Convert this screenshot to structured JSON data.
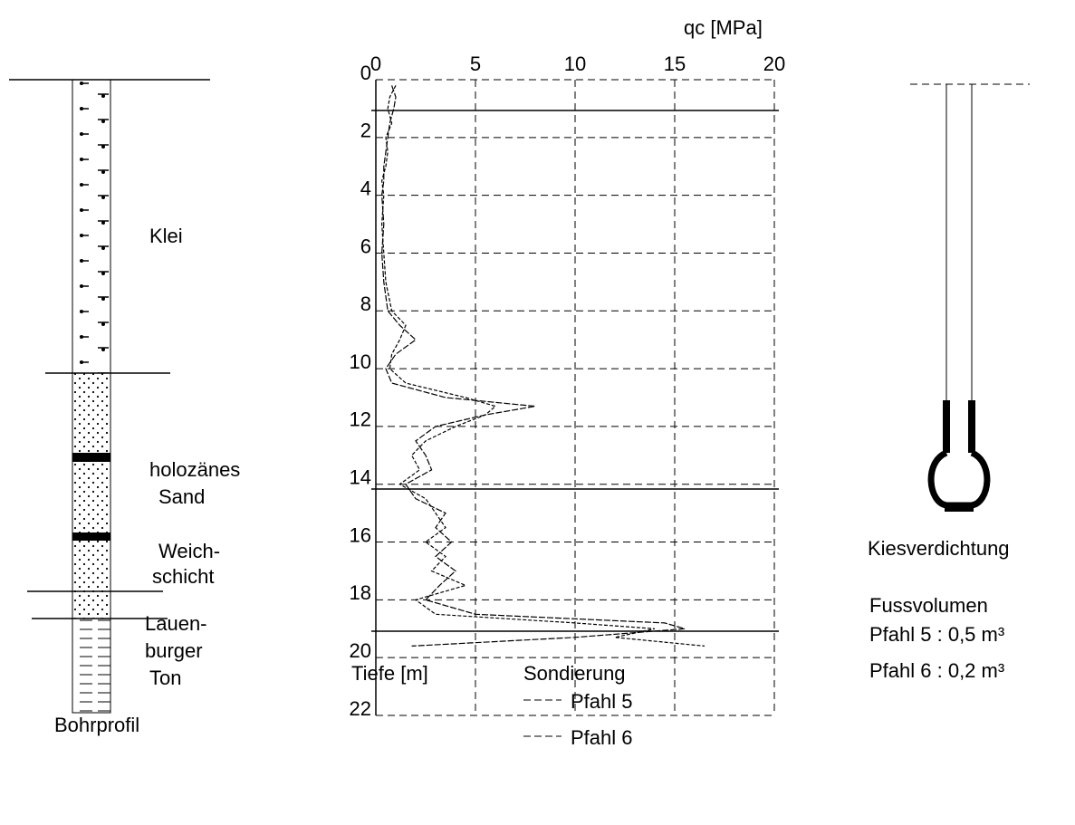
{
  "chart_data": {
    "type": "line",
    "x_label": "qc [MPa]",
    "y_label": "Tiefe [m]",
    "legend_title": "Sondierung",
    "xlim": [
      0,
      20
    ],
    "xticks": [
      0,
      5,
      10,
      15,
      20
    ],
    "ylim": [
      0,
      22
    ],
    "yticks": [
      0,
      2,
      4,
      6,
      8,
      10,
      12,
      14,
      16,
      18,
      20,
      22
    ],
    "grid": true,
    "y": [
      0.2,
      0.6,
      1,
      1.5,
      2,
      2.5,
      3,
      3.5,
      4,
      5,
      6,
      7,
      8,
      8.5,
      9,
      9.5,
      10,
      10.5,
      11,
      11.3,
      11.6,
      12,
      12.5,
      13,
      13.5,
      14,
      14.5,
      15,
      15.5,
      16,
      16.5,
      17,
      17.5,
      18,
      18.5,
      18.8,
      19,
      19.3,
      19.6
    ],
    "series": [
      {
        "name": "Pfahl 5",
        "color": "#000000",
        "values": [
          0.8,
          1.0,
          0.9,
          0.7,
          0.6,
          0.5,
          0.4,
          0.4,
          0.3,
          0.4,
          0.3,
          0.4,
          0.6,
          1.2,
          2.0,
          1.0,
          0.5,
          0.8,
          3.5,
          8.0,
          5.5,
          3.0,
          2.0,
          2.5,
          2.8,
          1.5,
          2.0,
          3.5,
          3.0,
          3.8,
          3.0,
          4.0,
          3.2,
          2.5,
          5.0,
          14.5,
          15.5,
          10.0,
          1.8
        ]
      },
      {
        "name": "Pfahl 6",
        "color": "#000000",
        "values": [
          1.0,
          0.7,
          0.6,
          0.8,
          0.5,
          0.6,
          0.5,
          0.3,
          0.4,
          0.3,
          0.4,
          0.5,
          0.8,
          1.5,
          1.2,
          0.8,
          0.7,
          1.5,
          4.5,
          6.0,
          5.5,
          4.0,
          2.5,
          1.8,
          2.2,
          1.2,
          2.5,
          3.0,
          3.5,
          2.5,
          3.5,
          2.8,
          4.5,
          2.0,
          3.0,
          10.0,
          14.0,
          12.0,
          16.5
        ]
      }
    ]
  },
  "profile": {
    "caption": "Bohrprofil",
    "labels": [
      "Klei",
      "holozänes",
      "Sand",
      "Weich-",
      "schicht",
      "Lauen-",
      "burger",
      "Ton"
    ]
  },
  "pile": {
    "label": "Kiesverdichtung",
    "volume_title": "Fussvolumen",
    "volumes": [
      "Pfahl 5 :  0,5 m³",
      "Pfahl 6 :  0,2 m³"
    ]
  }
}
